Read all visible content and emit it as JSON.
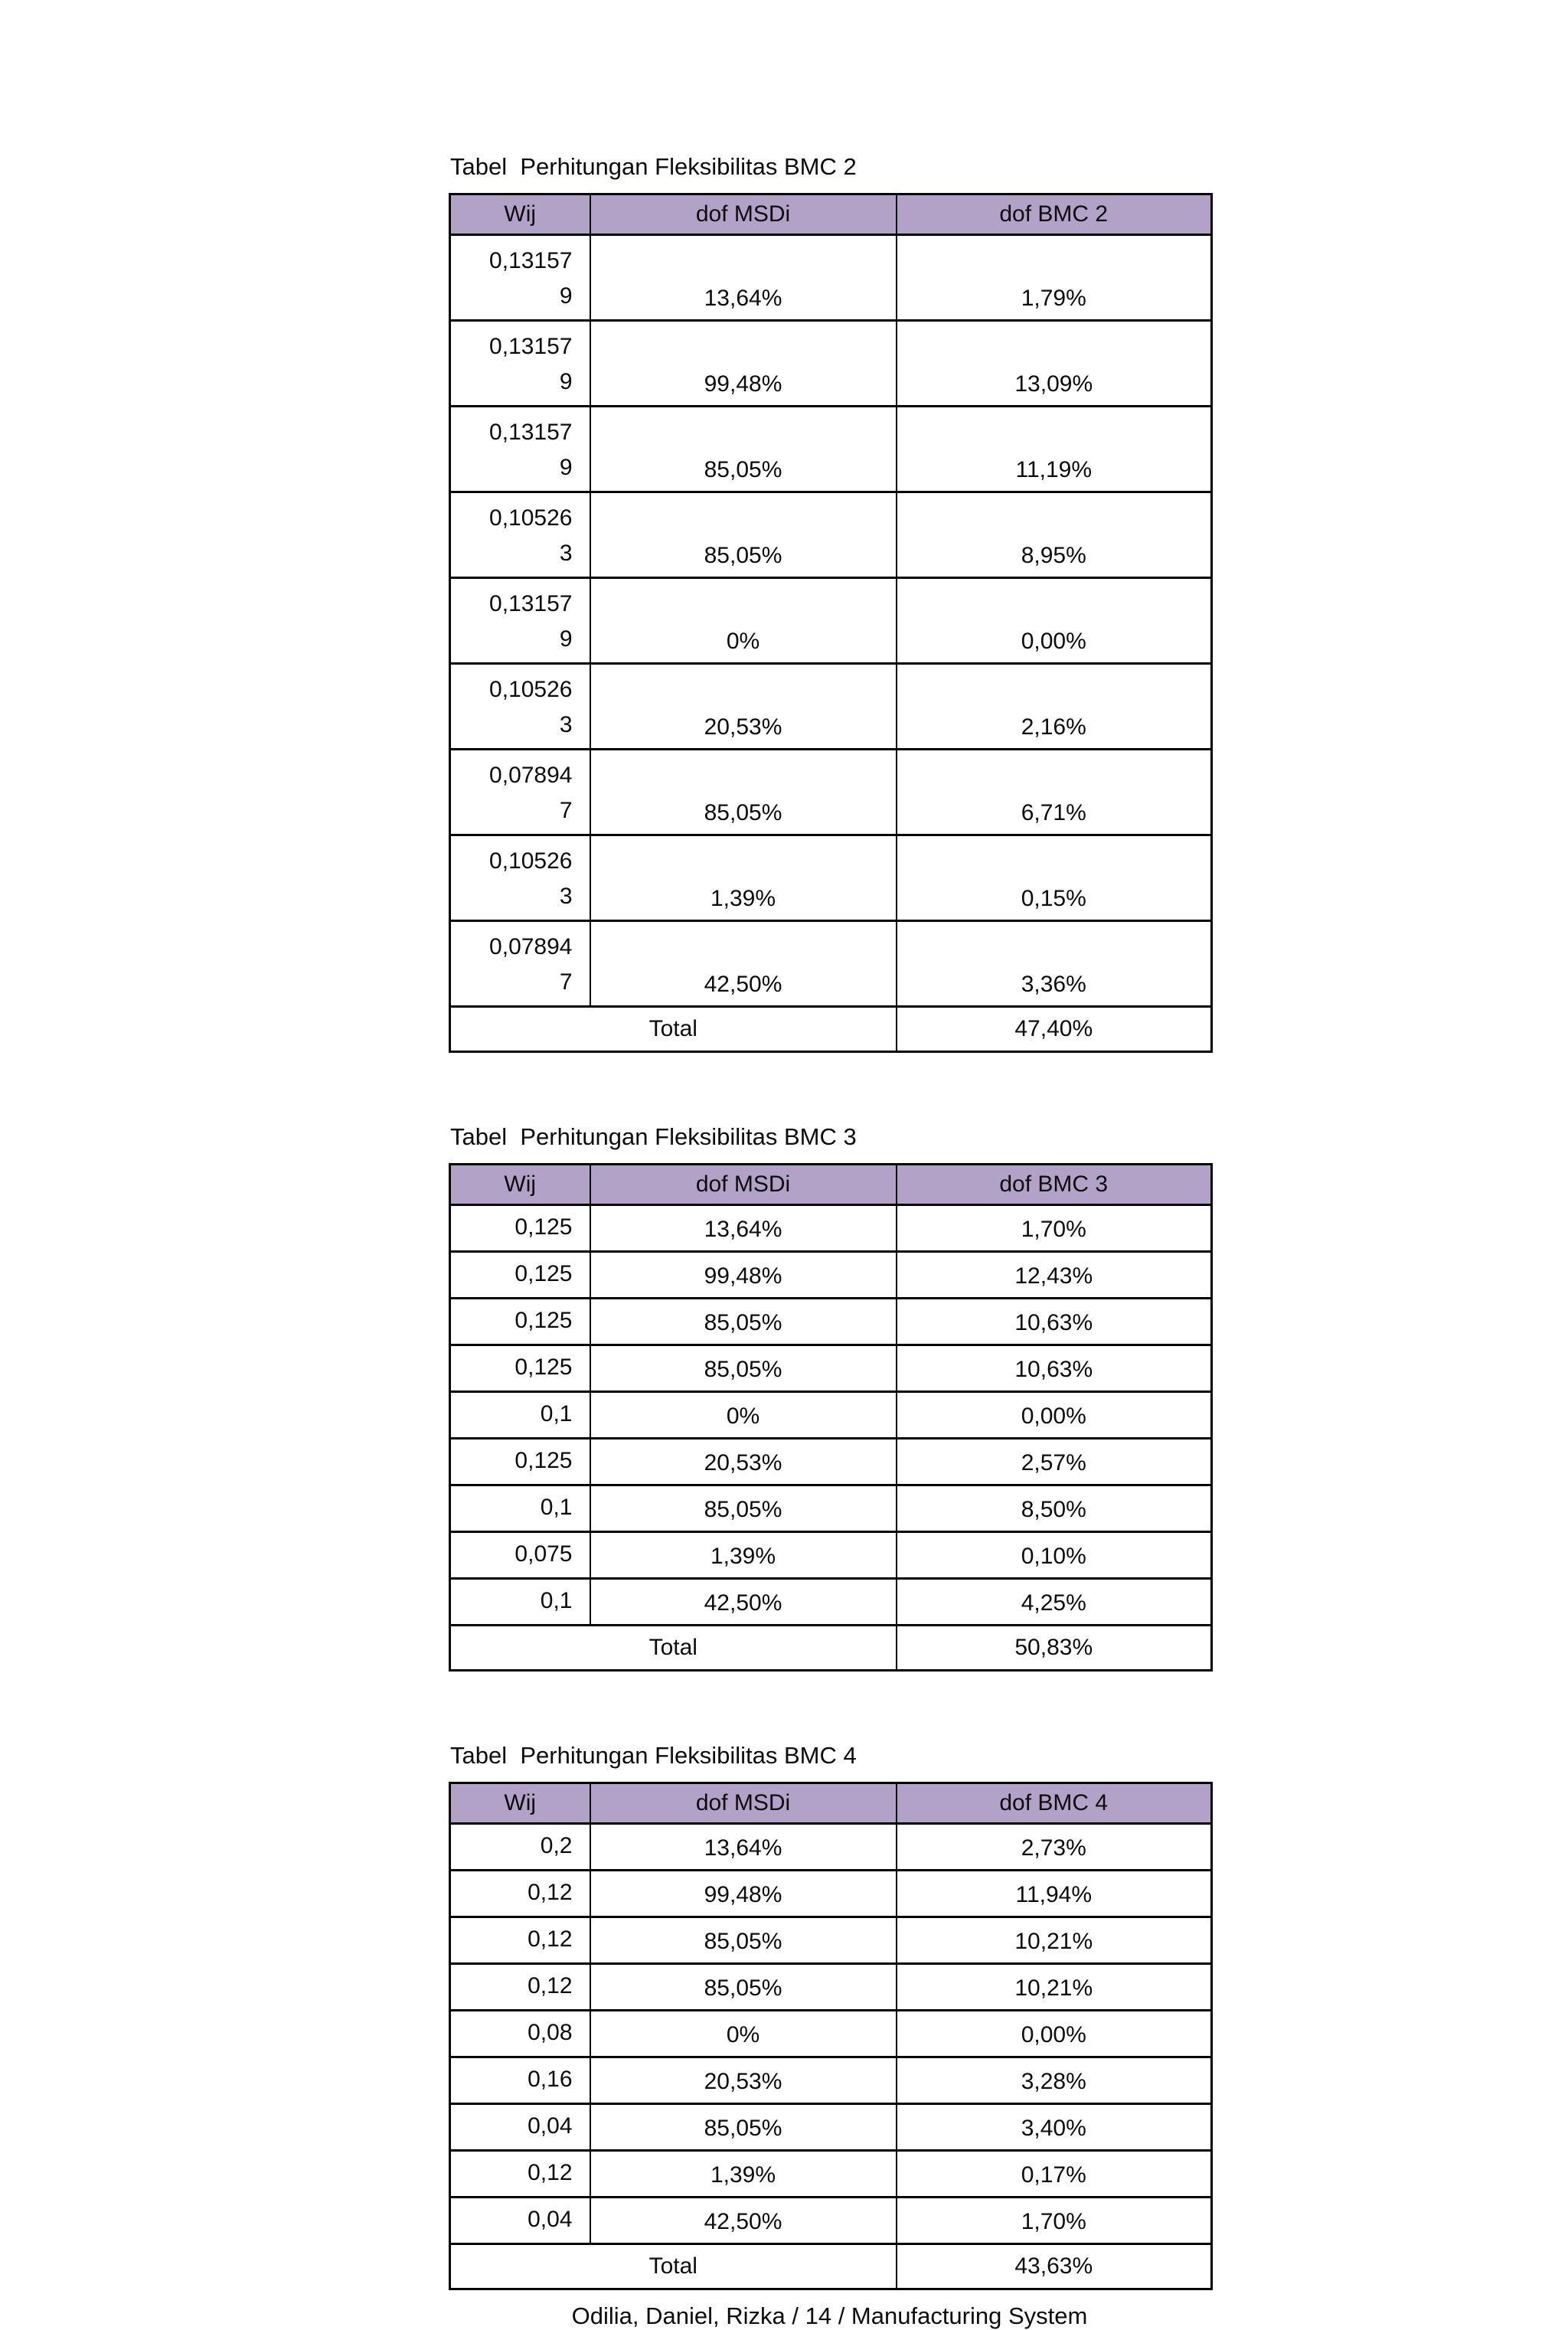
{
  "page": {
    "footer": "Odilia, Daniel, Rizka / 14 / Manufacturing System"
  },
  "theme": {
    "header_fill": "#b2a2c7",
    "border_color": "#000000",
    "page_bg": "#ffffff"
  },
  "tables": [
    {
      "title": "Tabel  Perhitungan Fleksibilitas BMC 2",
      "columns": [
        "Wij",
        "dof MSDi",
        "dof BMC 2"
      ],
      "wrap_wij": true,
      "rows": [
        [
          "0,13157\n9",
          "13,64%",
          "1,79%"
        ],
        [
          "0,13157\n9",
          "99,48%",
          "13,09%"
        ],
        [
          "0,13157\n9",
          "85,05%",
          "11,19%"
        ],
        [
          "0,10526\n3",
          "85,05%",
          "8,95%"
        ],
        [
          "0,13157\n9",
          "0%",
          "0,00%"
        ],
        [
          "0,10526\n3",
          "20,53%",
          "2,16%"
        ],
        [
          "0,07894\n7",
          "85,05%",
          "6,71%"
        ],
        [
          "0,10526\n3",
          "1,39%",
          "0,15%"
        ],
        [
          "0,07894\n7",
          "42,50%",
          "3,36%"
        ]
      ],
      "total_label": "Total",
      "total_value": "47,40%"
    },
    {
      "title": "Tabel  Perhitungan Fleksibilitas BMC 3",
      "columns": [
        "Wij",
        "dof MSDi",
        "dof BMC 3"
      ],
      "wrap_wij": false,
      "rows": [
        [
          "0,125",
          "13,64%",
          "1,70%"
        ],
        [
          "0,125",
          "99,48%",
          "12,43%"
        ],
        [
          "0,125",
          "85,05%",
          "10,63%"
        ],
        [
          "0,125",
          "85,05%",
          "10,63%"
        ],
        [
          "0,1",
          "0%",
          "0,00%"
        ],
        [
          "0,125",
          "20,53%",
          "2,57%"
        ],
        [
          "0,1",
          "85,05%",
          "8,50%"
        ],
        [
          "0,075",
          "1,39%",
          "0,10%"
        ],
        [
          "0,1",
          "42,50%",
          "4,25%"
        ]
      ],
      "total_label": "Total",
      "total_value": "50,83%"
    },
    {
      "title": "Tabel  Perhitungan Fleksibilitas BMC 4",
      "columns": [
        "Wij",
        "dof MSDi",
        "dof BMC 4"
      ],
      "wrap_wij": false,
      "rows": [
        [
          "0,2",
          "13,64%",
          "2,73%"
        ],
        [
          "0,12",
          "99,48%",
          "11,94%"
        ],
        [
          "0,12",
          "85,05%",
          "10,21%"
        ],
        [
          "0,12",
          "85,05%",
          "10,21%"
        ],
        [
          "0,08",
          "0%",
          "0,00%"
        ],
        [
          "0,16",
          "20,53%",
          "3,28%"
        ],
        [
          "0,04",
          "85,05%",
          "3,40%"
        ],
        [
          "0,12",
          "1,39%",
          "0,17%"
        ],
        [
          "0,04",
          "42,50%",
          "1,70%"
        ]
      ],
      "total_label": "Total",
      "total_value": "43,63%"
    }
  ]
}
